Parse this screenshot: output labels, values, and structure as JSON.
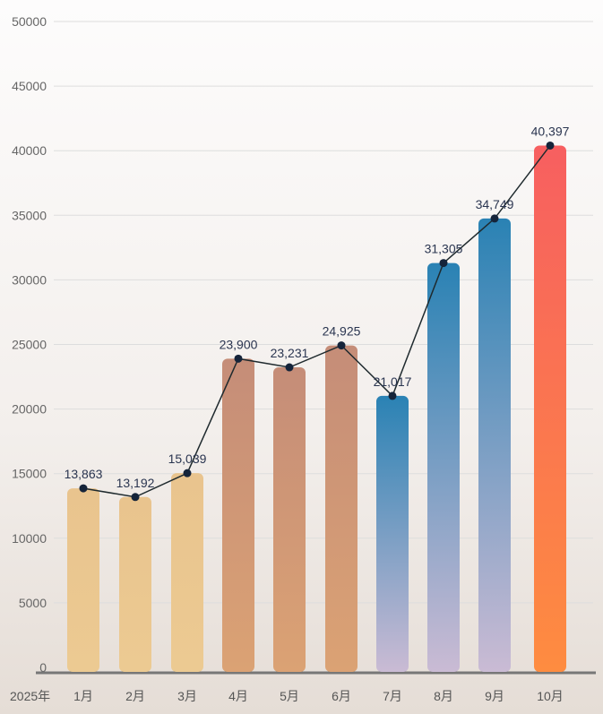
{
  "chart_data": {
    "type": "bar",
    "title": "",
    "xlabel": "2025年",
    "ylabel": "",
    "ylim": [
      0,
      50000
    ],
    "yticks": [
      0,
      5000,
      10000,
      15000,
      20000,
      25000,
      30000,
      35000,
      40000,
      45000,
      50000
    ],
    "grid": true,
    "categories": [
      "1月",
      "2月",
      "3月",
      "4月",
      "5月",
      "6月",
      "7月",
      "8月",
      "9月",
      "10月"
    ],
    "values": [
      13863,
      13192,
      15039,
      23900,
      23231,
      24925,
      21017,
      31305,
      34749,
      40397
    ],
    "labels": [
      "13,863",
      "13,192",
      "15,039",
      "23,900",
      "23,231",
      "24,925",
      "21,017",
      "31,305",
      "34,749",
      "40,397"
    ],
    "line_overlay": true,
    "colors": {
      "q1": [
        "#e9c48e",
        "#ecca92"
      ],
      "q2": [
        "#c58d78",
        "#dba274"
      ],
      "q3": [
        "#2a82b4",
        "#cabbd4"
      ],
      "oct": [
        "#f75f60",
        "#fe8c40"
      ],
      "line": "#1f2a2e",
      "axis": "#777777",
      "grid": "#dddddd"
    }
  }
}
